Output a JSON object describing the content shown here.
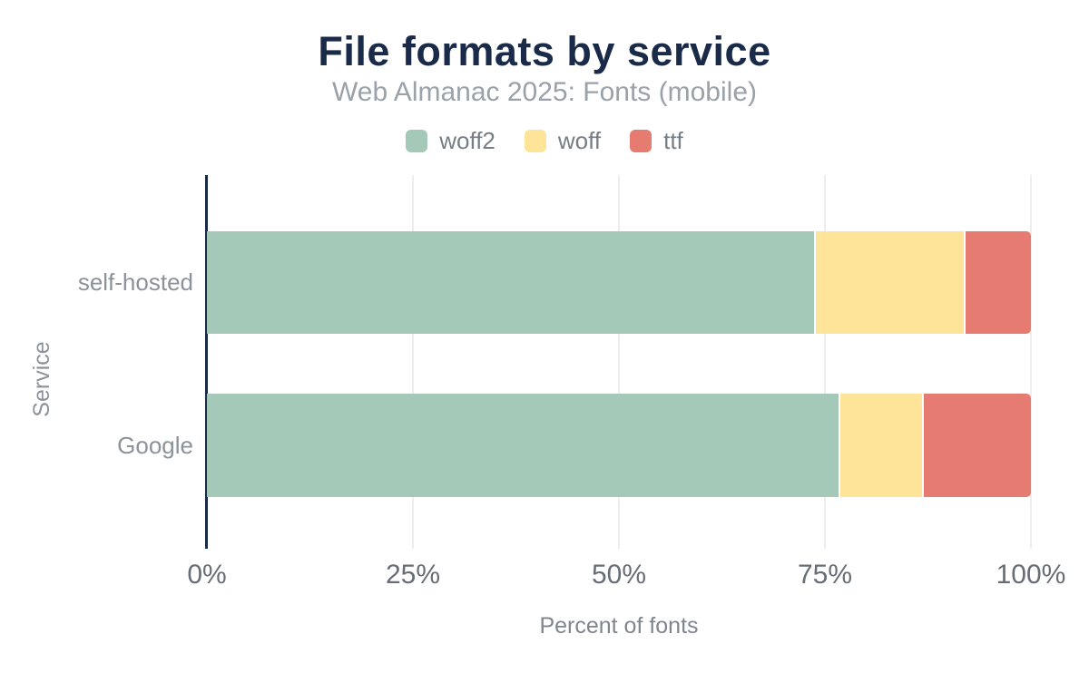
{
  "header": {
    "title": "File formats by service",
    "subtitle": "Web Almanac 2025: Fonts (mobile)"
  },
  "chart_data": {
    "type": "bar",
    "orientation": "horizontal",
    "stacked": true,
    "title": "File formats by service",
    "subtitle": "Web Almanac 2025: Fonts (mobile)",
    "categories": [
      "self-hosted",
      "Google"
    ],
    "series": [
      {
        "name": "woff2",
        "color": "#a4c9b8",
        "values": [
          74,
          77
        ]
      },
      {
        "name": "woff",
        "color": "#fde498",
        "values": [
          18,
          10
        ]
      },
      {
        "name": "ttf",
        "color": "#e57b71",
        "values": [
          8,
          13
        ]
      }
    ],
    "xlabel": "Percent of fonts",
    "ylabel": "Service",
    "xlim": [
      0,
      100
    ],
    "xtick_values": [
      0,
      25,
      50,
      75,
      100
    ],
    "xtick_labels": [
      "0%",
      "25%",
      "50%",
      "75%",
      "100%"
    ],
    "legend_position": "top",
    "grid": true
  },
  "colors": {
    "title": "#1a2b49",
    "subtitle": "#9aa1a9",
    "axis_line": "#1b2a44",
    "gridline": "#ededf0",
    "tick_label": "#676d76",
    "category_label": "#8b929b",
    "axis_title": "#7f868f",
    "legend_label": "#757d86"
  }
}
